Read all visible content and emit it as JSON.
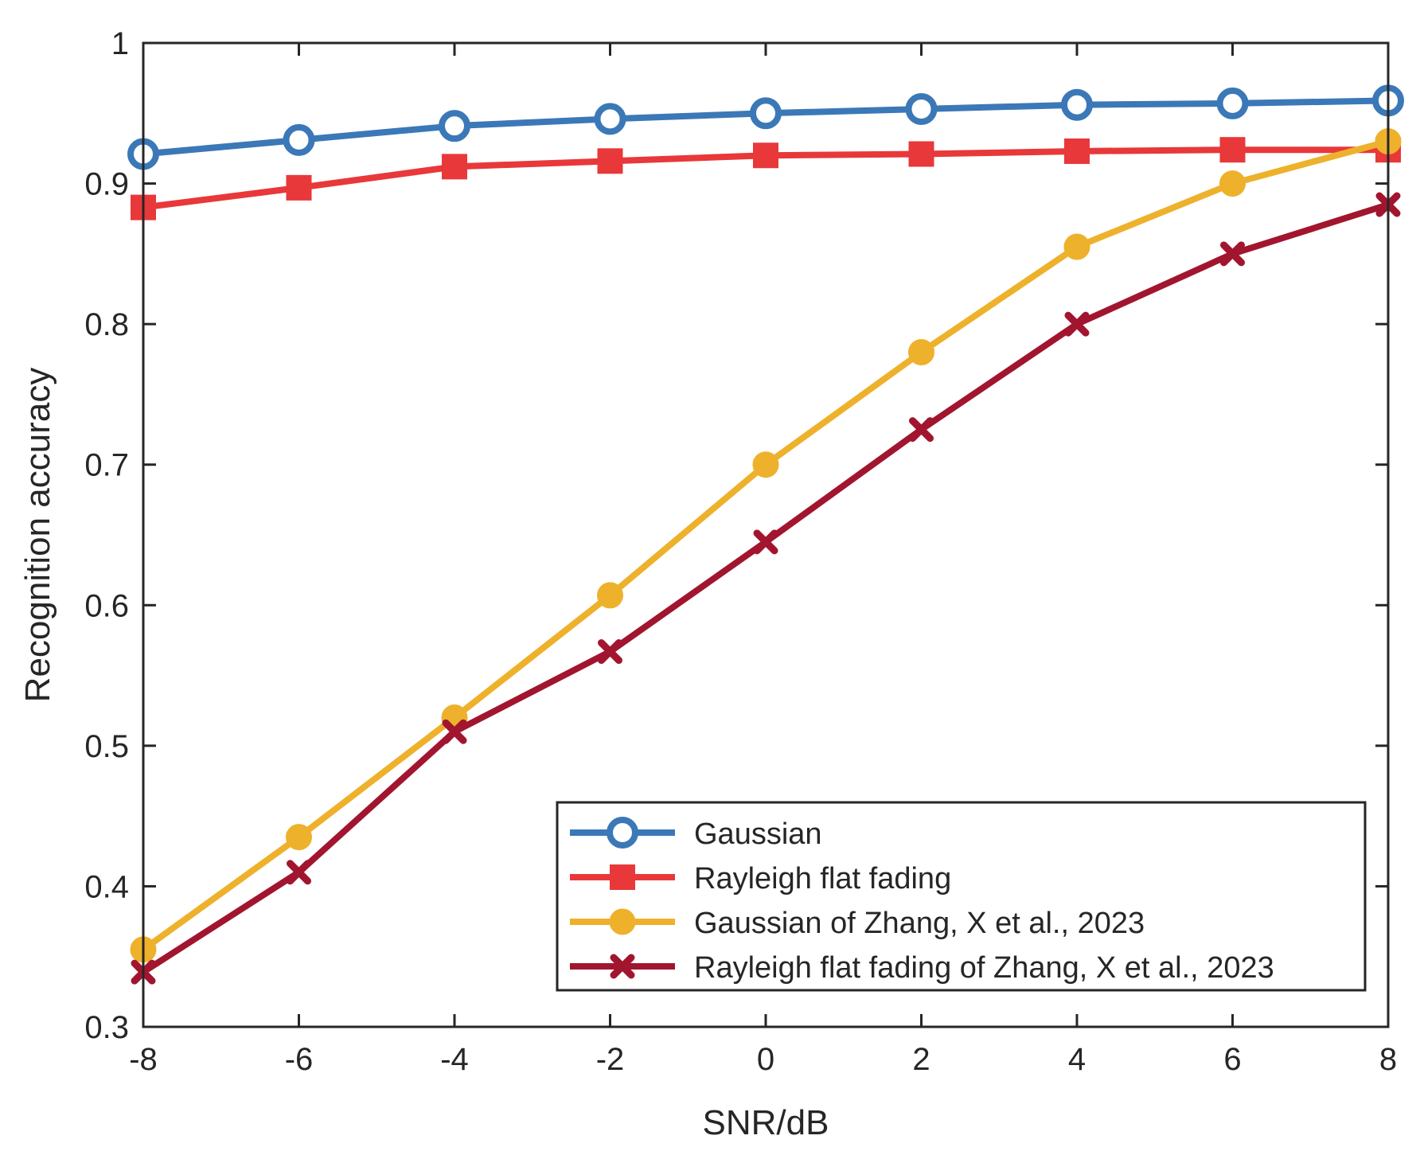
{
  "chart_data": {
    "type": "line",
    "title": "",
    "xlabel": "SNR/dB",
    "ylabel": "Recognition accuracy",
    "x": [
      -8,
      -6,
      -4,
      -2,
      0,
      2,
      4,
      6,
      8
    ],
    "xlim": [
      -8,
      8
    ],
    "ylim": [
      0.3,
      1.0
    ],
    "xticks": [
      -8,
      -6,
      -4,
      -2,
      0,
      2,
      4,
      6,
      8
    ],
    "xtick_labels": [
      "-8",
      "-6",
      "-4",
      "-2",
      "0",
      "2",
      "4",
      "6",
      "8"
    ],
    "yticks": [
      0.3,
      0.4,
      0.5,
      0.6,
      0.7,
      0.8,
      0.9,
      1.0
    ],
    "ytick_labels": [
      "0.3",
      "0.4",
      "0.5",
      "0.6",
      "0.7",
      "0.8",
      "0.9",
      "1"
    ],
    "grid": false,
    "legend_position": "bottom-right",
    "series": [
      {
        "name": "Gaussian",
        "color": "#3b78b7",
        "marker": "circle-open",
        "values": [
          0.921,
          0.931,
          0.941,
          0.946,
          0.95,
          0.953,
          0.956,
          0.957,
          0.959
        ]
      },
      {
        "name": "Rayleigh flat fading",
        "color": "#e8383a",
        "marker": "square",
        "values": [
          0.883,
          0.897,
          0.912,
          0.916,
          0.92,
          0.921,
          0.923,
          0.924,
          0.924
        ]
      },
      {
        "name": "Gaussian of Zhang, X et al., 2023",
        "color": "#eeb12b",
        "marker": "circle-filled",
        "values": [
          0.355,
          0.435,
          0.52,
          0.607,
          0.7,
          0.78,
          0.855,
          0.9,
          0.93
        ]
      },
      {
        "name": "Rayleigh flat fading of Zhang, X et al., 2023",
        "color": "#a2152f",
        "marker": "x",
        "values": [
          0.339,
          0.41,
          0.51,
          0.567,
          0.645,
          0.725,
          0.8,
          0.85,
          0.885
        ]
      }
    ]
  }
}
